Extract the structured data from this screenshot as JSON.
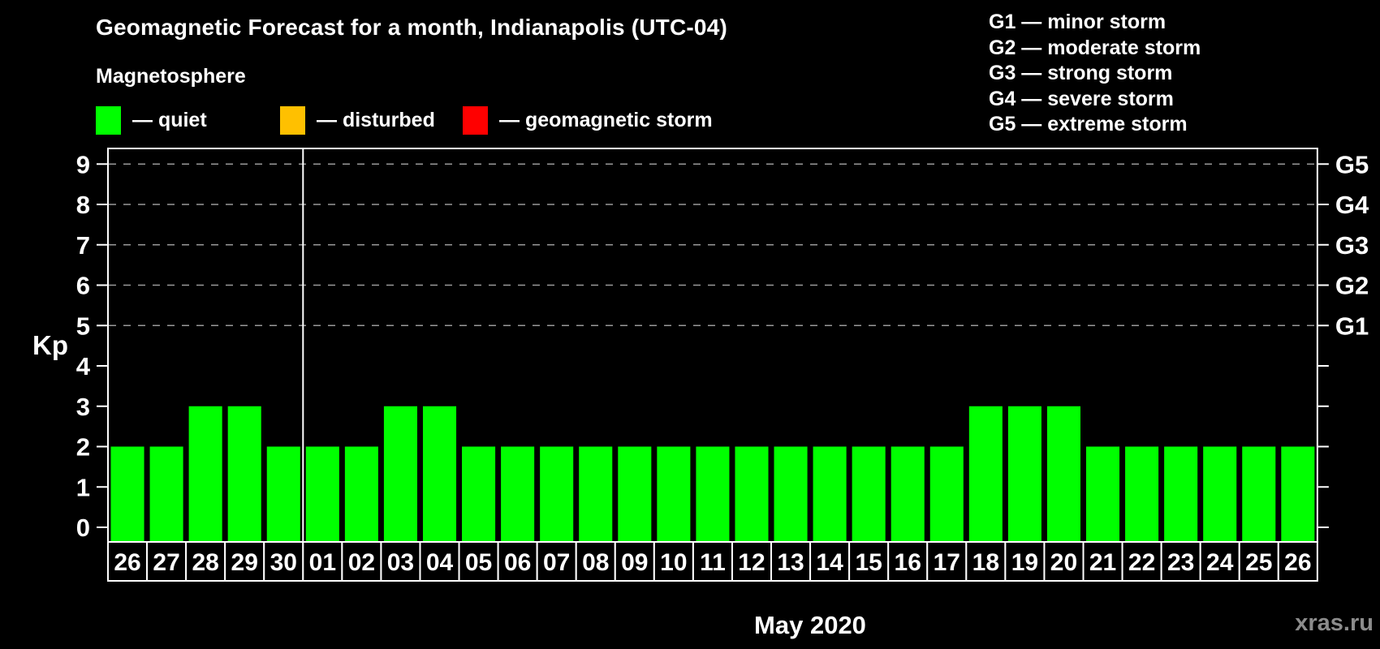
{
  "header": {
    "title": "Geomagnetic Forecast for a month, Indianapolis (UTC-04)"
  },
  "magnetosphere_legend": {
    "title": "Magnetosphere",
    "items": [
      {
        "name": "quiet",
        "label": "— quiet",
        "color": "#00ff00"
      },
      {
        "name": "disturbed",
        "label": "— disturbed",
        "color": "#ffc000"
      },
      {
        "name": "storm",
        "label": "— geomagnetic storm",
        "color": "#ff0000"
      }
    ]
  },
  "storm_scale_legend": {
    "items": [
      "G1 — minor storm",
      "G2 — moderate storm",
      "G3 — strong storm",
      "G4 — severe storm",
      "G5 — extreme storm"
    ]
  },
  "chart_data": {
    "type": "bar",
    "title": "Geomagnetic Forecast for a month, Indianapolis (UTC-04)",
    "ylabel": "Kp",
    "xlabel": "May 2020",
    "ylim": [
      0,
      9
    ],
    "ytick_labels": [
      "0",
      "1",
      "2",
      "3",
      "4",
      "5",
      "6",
      "7",
      "8",
      "9"
    ],
    "gridline_levels": [
      5,
      6,
      7,
      8,
      9
    ],
    "grid": "dashed horizontal at storm levels only",
    "right_axis_labels": [
      {
        "label": "G1",
        "kp": 5
      },
      {
        "label": "G2",
        "kp": 6
      },
      {
        "label": "G3",
        "kp": 7
      },
      {
        "label": "G4",
        "kp": 8
      },
      {
        "label": "G5",
        "kp": 9
      }
    ],
    "categories": [
      "26",
      "27",
      "28",
      "29",
      "30",
      "01",
      "02",
      "03",
      "04",
      "05",
      "06",
      "07",
      "08",
      "09",
      "10",
      "11",
      "12",
      "13",
      "14",
      "15",
      "16",
      "17",
      "18",
      "19",
      "20",
      "21",
      "22",
      "23",
      "24",
      "25",
      "26"
    ],
    "values": [
      2,
      2,
      3,
      3,
      2,
      2,
      2,
      3,
      3,
      2,
      2,
      2,
      2,
      2,
      2,
      2,
      2,
      2,
      2,
      2,
      2,
      2,
      3,
      3,
      3,
      2,
      2,
      2,
      2,
      2,
      2
    ],
    "bar_color": "#00ff00",
    "separator_after_category_index": 4,
    "legend_position": "top"
  },
  "watermark": "xras.ru"
}
